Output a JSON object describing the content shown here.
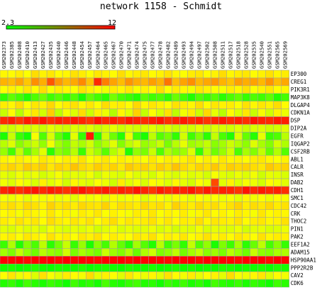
{
  "chart_data": {
    "type": "heatmap",
    "title": "network 1158 - Schmidt",
    "scale": {
      "min": 2.3,
      "max": 12,
      "min_label": "2.3",
      "max_label": "12",
      "low_color": "#00ff00",
      "high_color": "#ff0000"
    },
    "columns": [
      "GSM202373",
      "GSM202385",
      "GSM202408",
      "GSM202410",
      "GSM202413",
      "GSM202427",
      "GSM202435",
      "GSM202440",
      "GSM202446",
      "GSM202448",
      "GSM202454",
      "GSM202457",
      "GSM202464",
      "GSM202465",
      "GSM202467",
      "GSM202470",
      "GSM202471",
      "GSM202474",
      "GSM202475",
      "GSM202477",
      "GSM202478",
      "GSM202482",
      "GSM202489",
      "GSM202493",
      "GSM202494",
      "GSM202497",
      "GSM202502",
      "GSM202508",
      "GSM202511",
      "GSM202517",
      "GSM202518",
      "GSM202528",
      "GSM202535",
      "GSM202540",
      "GSM202551",
      "GSM202565",
      "GSM202569"
    ],
    "rows": [
      "EP300",
      "CREG1",
      "PIK3R1",
      "MAP3K8",
      "DLGAP4",
      "CDKN1A",
      "DSP",
      "DIP2A",
      "EGFR",
      "IQGAP2",
      "CSF2RB",
      "ABL1",
      "CALR",
      "INSR",
      "DAB2",
      "CDH1",
      "SMC1",
      "CDC42",
      "CRK",
      "THOC2",
      "PIN1",
      "PAK2",
      "EEF1A2",
      "ADAM15",
      "HSP90AA1",
      "PPP2R2B",
      "CAV2",
      "CDK6"
    ],
    "values": [
      [
        7.3,
        7.2,
        7.5,
        7.1,
        7.8,
        7.4,
        7.6,
        7.2,
        7.3,
        7.7,
        7.5,
        7.1,
        7.6,
        7.4,
        7.2,
        7.8,
        7.3,
        7.5,
        7.6,
        7.2,
        7.4,
        7.7,
        7.3,
        7.1,
        7.5,
        7.6,
        7.2,
        7.4,
        7.8,
        7.3,
        7.5,
        7.6,
        7.2,
        7.4,
        7.7,
        7.3,
        7.5
      ],
      [
        8.6,
        8.4,
        8.9,
        8.2,
        9.3,
        8.7,
        10.4,
        9.1,
        8.5,
        8.8,
        9.4,
        8.3,
        11.2,
        9.6,
        8.9,
        8.4,
        9.2,
        8.7,
        8.5,
        9.0,
        8.6,
        9.8,
        8.4,
        8.9,
        9.3,
        8.5,
        8.8,
        9.1,
        8.6,
        8.3,
        9.0,
        8.7,
        8.9,
        8.5,
        9.2,
        8.4,
        8.8
      ],
      [
        7.1,
        7.4,
        6.9,
        7.6,
        7.2,
        7.8,
        7.0,
        7.5,
        7.3,
        7.1,
        7.7,
        7.4,
        7.2,
        6.8,
        7.5,
        7.3,
        7.6,
        7.0,
        7.4,
        7.2,
        7.8,
        7.1,
        7.5,
        7.3,
        6.9,
        7.6,
        7.4,
        7.2,
        7.0,
        7.5,
        7.3,
        7.7,
        7.1,
        7.4,
        7.6,
        7.2,
        7.3
      ],
      [
        3.2,
        4.1,
        3.6,
        2.9,
        3.8,
        4.4,
        3.5,
        4.0,
        3.3,
        3.9,
        2.8,
        4.2,
        3.6,
        3.1,
        4.5,
        3.7,
        3.4,
        3.0,
        4.1,
        3.5,
        3.8,
        3.2,
        4.3,
        3.6,
        2.9,
        3.9,
        3.4,
        4.0,
        3.1,
        3.7,
        4.2,
        3.3,
        3.8,
        3.5,
        4.1,
        3.0,
        3.6
      ],
      [
        7.5,
        7.3,
        7.8,
        7.1,
        7.6,
        7.4,
        7.9,
        7.2,
        7.5,
        7.7,
        7.3,
        7.6,
        7.1,
        7.8,
        7.4,
        7.5,
        7.2,
        7.9,
        7.3,
        7.6,
        7.4,
        7.1,
        7.7,
        7.5,
        7.3,
        7.8,
        7.2,
        7.6,
        7.4,
        7.5,
        7.1,
        7.7,
        7.3,
        7.6,
        7.4,
        7.8,
        7.2
      ],
      [
        6.1,
        7.2,
        5.8,
        6.9,
        7.6,
        6.3,
        8.1,
        5.9,
        7.0,
        6.5,
        7.8,
        6.2,
        7.4,
        6.8,
        5.7,
        7.3,
        6.6,
        8.0,
        6.0,
        7.1,
        6.4,
        7.7,
        5.9,
        6.9,
        7.5,
        6.2,
        7.9,
        6.7,
        5.8,
        7.2,
        6.5,
        7.6,
        6.1,
        7.0,
        6.3,
        7.4,
        6.8
      ],
      [
        11.2,
        11.4,
        11.0,
        11.5,
        11.3,
        11.6,
        11.1,
        11.4,
        11.2,
        11.5,
        11.3,
        11.0,
        11.6,
        11.2,
        11.4,
        11.1,
        11.5,
        11.3,
        11.2,
        11.4,
        11.6,
        11.1,
        11.3,
        11.5,
        11.2,
        11.4,
        11.0,
        11.3,
        11.5,
        11.2,
        11.4,
        11.1,
        11.6,
        11.3,
        11.2,
        11.5,
        11.4
      ],
      [
        6.4,
        6.2,
        6.6,
        6.3,
        6.5,
        6.1,
        6.7,
        6.4,
        6.2,
        6.5,
        6.3,
        6.6,
        6.1,
        6.4,
        6.7,
        6.2,
        6.5,
        6.3,
        6.4,
        6.6,
        6.2,
        6.5,
        6.1,
        6.4,
        6.3,
        6.7,
        6.2,
        6.5,
        6.4,
        6.3,
        6.6,
        6.1,
        6.4,
        6.5,
        6.2,
        6.3,
        6.6
      ],
      [
        2.8,
        6.1,
        3.4,
        2.7,
        7.0,
        3.8,
        6.4,
        4.1,
        2.9,
        6.6,
        3.3,
        11.5,
        3.1,
        6.2,
        4.4,
        3.0,
        6.8,
        3.6,
        2.8,
        5.9,
        3.9,
        4.6,
        3.2,
        6.3,
        3.5,
        4.8,
        3.1,
        6.0,
        3.7,
        2.9,
        6.5,
        4.2,
        3.0,
        6.7,
        3.4,
        3.8,
        5.8
      ],
      [
        5.8,
        6.5,
        4.9,
        5.6,
        6.2,
        5.1,
        6.9,
        5.4,
        4.7,
        6.0,
        5.5,
        6.3,
        5.0,
        5.7,
        6.6,
        4.8,
        5.9,
        6.4,
        5.2,
        5.5,
        6.1,
        4.6,
        5.8,
        6.7,
        5.3,
        5.6,
        6.0,
        4.9,
        5.4,
        6.2,
        5.7,
        5.0,
        6.5,
        5.5,
        4.8,
        6.3,
        5.6
      ],
      [
        5.2,
        3.6,
        6.0,
        4.1,
        5.5,
        6.6,
        3.1,
        5.0,
        4.5,
        5.8,
        3.4,
        6.2,
        5.4,
        4.0,
        5.7,
        6.4,
        2.9,
        5.1,
        4.6,
        6.1,
        3.8,
        5.6,
        4.9,
        5.3,
        6.5,
        3.3,
        5.9,
        4.4,
        5.2,
        6.3,
        3.7,
        5.5,
        4.8,
        6.0,
        4.2,
        5.7,
        3.9
      ],
      [
        7.4,
        7.2,
        7.5,
        7.3,
        7.1,
        7.6,
        7.4,
        7.2,
        7.5,
        7.3,
        7.7,
        7.1,
        7.4,
        7.6,
        7.2,
        7.5,
        7.3,
        7.4,
        7.1,
        7.6,
        7.2,
        7.5,
        7.3,
        7.4,
        7.7,
        7.2,
        7.5,
        7.1,
        7.6,
        7.3,
        7.4,
        7.2,
        7.5,
        7.6,
        7.3,
        7.1,
        7.4
      ],
      [
        7.8,
        8.0,
        7.7,
        8.2,
        7.9,
        8.1,
        7.6,
        8.0,
        7.8,
        8.3,
        7.9,
        7.7,
        8.1,
        7.8,
        8.0,
        7.6,
        8.2,
        7.9,
        8.0,
        7.7,
        8.1,
        7.8,
        8.3,
        7.9,
        7.6,
        8.0,
        7.8,
        8.2,
        7.7,
        8.1,
        7.9,
        8.0,
        7.8,
        7.6,
        8.2,
        7.9,
        8.0
      ],
      [
        6.7,
        6.4,
        6.9,
        6.5,
        6.8,
        6.3,
        6.6,
        7.0,
        6.4,
        6.7,
        6.5,
        6.9,
        6.2,
        6.8,
        6.6,
        6.4,
        7.0,
        6.5,
        6.7,
        6.3,
        6.9,
        6.6,
        6.4,
        6.8,
        6.5,
        6.7,
        6.3,
        7.0,
        6.6,
        6.4,
        6.8,
        6.5,
        6.9,
        6.2,
        6.7,
        6.6,
        6.4
      ],
      [
        6.9,
        6.5,
        7.2,
        6.8,
        6.4,
        7.4,
        6.6,
        7.0,
        6.3,
        7.3,
        6.7,
        6.5,
        7.1,
        6.8,
        6.2,
        7.5,
        6.6,
        7.0,
        6.4,
        7.2,
        6.9,
        6.5,
        7.3,
        6.7,
        6.3,
        7.1,
        6.8,
        10.6,
        6.6,
        7.4,
        6.5,
        7.0,
        6.8,
        6.3,
        7.2,
        6.9,
        6.6
      ],
      [
        11.3,
        11.5,
        11.1,
        11.4,
        11.6,
        11.2,
        11.5,
        11.3,
        11.0,
        11.4,
        11.6,
        11.2,
        11.3,
        11.5,
        11.1,
        11.4,
        11.2,
        11.6,
        11.3,
        11.0,
        11.5,
        11.2,
        11.4,
        11.3,
        11.6,
        11.1,
        11.5,
        11.2,
        11.4,
        11.3,
        11.0,
        11.6,
        11.2,
        11.5,
        11.3,
        11.4,
        11.1
      ],
      [
        7.0,
        6.8,
        7.2,
        6.7,
        7.1,
        6.9,
        7.3,
        6.8,
        7.0,
        6.6,
        7.2,
        6.9,
        7.1,
        6.7,
        7.3,
        6.8,
        7.0,
        7.2,
        6.6,
        6.9,
        7.1,
        6.8,
        7.3,
        7.0,
        6.7,
        7.2,
        6.9,
        7.1,
        6.8,
        7.0,
        6.6,
        7.3,
        6.9,
        7.1,
        6.8,
        7.2,
        7.0
      ],
      [
        7.6,
        7.8,
        7.5,
        7.9,
        7.7,
        7.4,
        8.0,
        7.6,
        7.8,
        7.5,
        7.9,
        7.7,
        7.6,
        8.0,
        7.4,
        7.8,
        7.7,
        7.5,
        7.9,
        7.6,
        7.8,
        7.4,
        8.0,
        7.7,
        7.5,
        7.9,
        7.6,
        7.8,
        7.4,
        7.7,
        8.0,
        7.5,
        7.8,
        7.6,
        7.9,
        7.5,
        7.7
      ],
      [
        7.2,
        7.4,
        7.0,
        7.5,
        7.3,
        7.1,
        7.6,
        7.2,
        7.4,
        7.0,
        7.5,
        7.3,
        7.6,
        7.1,
        7.4,
        7.2,
        7.0,
        7.5,
        7.3,
        7.6,
        7.1,
        7.4,
        7.2,
        7.5,
        7.0,
        7.3,
        7.6,
        7.2,
        7.4,
        7.1,
        7.5,
        7.3,
        7.0,
        7.6,
        7.2,
        7.4,
        7.3
      ],
      [
        7.5,
        7.3,
        7.7,
        7.4,
        7.6,
        7.2,
        7.8,
        7.5,
        7.3,
        7.6,
        7.4,
        7.7,
        7.2,
        7.5,
        7.8,
        7.3,
        7.6,
        7.4,
        7.5,
        7.7,
        7.3,
        7.6,
        7.2,
        7.5,
        7.4,
        7.8,
        7.3,
        7.6,
        7.5,
        7.4,
        7.7,
        7.2,
        7.5,
        7.6,
        7.3,
        7.4,
        7.7
      ],
      [
        6.6,
        6.4,
        6.8,
        6.5,
        6.7,
        6.3,
        6.9,
        6.6,
        6.4,
        6.7,
        6.5,
        6.8,
        6.3,
        6.6,
        6.9,
        6.4,
        6.7,
        6.5,
        6.6,
        6.8,
        6.4,
        6.7,
        6.3,
        6.6,
        6.5,
        6.9,
        6.4,
        6.7,
        6.6,
        6.5,
        6.8,
        6.3,
        6.6,
        6.7,
        6.4,
        6.5,
        6.8
      ],
      [
        7.3,
        7.5,
        7.1,
        7.6,
        7.4,
        7.2,
        7.7,
        7.3,
        7.5,
        7.1,
        7.6,
        7.4,
        7.7,
        7.2,
        7.5,
        7.3,
        7.1,
        7.6,
        7.4,
        7.7,
        7.2,
        7.5,
        7.3,
        7.6,
        7.1,
        7.4,
        7.7,
        7.3,
        7.5,
        7.2,
        7.6,
        7.4,
        7.1,
        7.7,
        7.3,
        7.5,
        7.4
      ],
      [
        3.4,
        5.6,
        2.9,
        4.8,
        3.7,
        5.9,
        3.1,
        4.5,
        6.1,
        3.3,
        5.2,
        2.8,
        4.9,
        3.6,
        5.7,
        4.2,
        3.0,
        5.4,
        3.9,
        2.9,
        5.8,
        3.5,
        4.6,
        3.2,
        6.0,
        3.8,
        5.1,
        2.8,
        4.7,
        3.4,
        5.5,
        3.1,
        4.3,
        5.9,
        3.6,
        4.9,
        3.3
      ],
      [
        5.4,
        4.7,
        6.0,
        5.1,
        4.4,
        5.8,
        5.2,
        4.9,
        6.3,
        4.6,
        5.5,
        5.0,
        4.5,
        6.1,
        5.3,
        4.8,
        5.7,
        4.3,
        5.6,
        6.2,
        4.7,
        5.1,
        5.9,
        4.5,
        5.4,
        6.0,
        4.9,
        5.3,
        4.6,
        5.8,
        5.2,
        4.4,
        6.1,
        5.0,
        4.8,
        5.5,
        5.6
      ],
      [
        12.0,
        11.9,
        12.0,
        11.8,
        12.0,
        11.9,
        12.0,
        11.8,
        12.0,
        11.9,
        12.0,
        11.9,
        11.8,
        12.0,
        11.9,
        12.0,
        11.8,
        12.0,
        11.9,
        12.0,
        11.9,
        11.8,
        12.0,
        11.9,
        12.0,
        11.8,
        12.0,
        11.9,
        12.0,
        11.9,
        11.8,
        12.0,
        11.9,
        12.0,
        11.8,
        12.0,
        11.9
      ],
      [
        2.6,
        2.8,
        2.5,
        2.7,
        2.9,
        2.6,
        2.5,
        2.8,
        2.7,
        2.6,
        2.9,
        2.5,
        2.7,
        2.8,
        2.6,
        2.5,
        2.9,
        2.7,
        2.6,
        2.8,
        2.5,
        2.7,
        2.9,
        2.6,
        2.8,
        2.5,
        2.7,
        2.6,
        2.9,
        2.8,
        2.5,
        2.7,
        2.6,
        2.8,
        2.5,
        2.9,
        2.7
      ],
      [
        7.1,
        7.6,
        6.8,
        7.3,
        6.5,
        7.7,
        7.0,
        6.6,
        7.5,
        7.2,
        6.9,
        7.8,
        6.7,
        7.4,
        7.1,
        6.5,
        7.6,
        7.0,
        6.8,
        7.3,
        6.6,
        7.7,
        7.2,
        6.9,
        7.5,
        6.7,
        7.1,
        7.4,
        6.6,
        7.8,
        7.0,
        6.8,
        7.3,
        7.6,
        6.5,
        7.2,
        6.9
      ],
      [
        2.9,
        3.3,
        2.7,
        3.6,
        3.0,
        2.8,
        3.4,
        3.1,
        2.6,
        3.5,
        2.9,
        3.2,
        2.7,
        3.7,
        3.0,
        2.8,
        3.3,
        3.6,
        2.9,
        3.1,
        2.6,
        3.4,
        3.0,
        3.5,
        2.8,
        3.2,
        2.7,
        3.6,
        3.1,
        2.9,
        3.4,
        2.8,
        3.3,
        3.0,
        2.6,
        3.5,
        3.1
      ]
    ]
  }
}
